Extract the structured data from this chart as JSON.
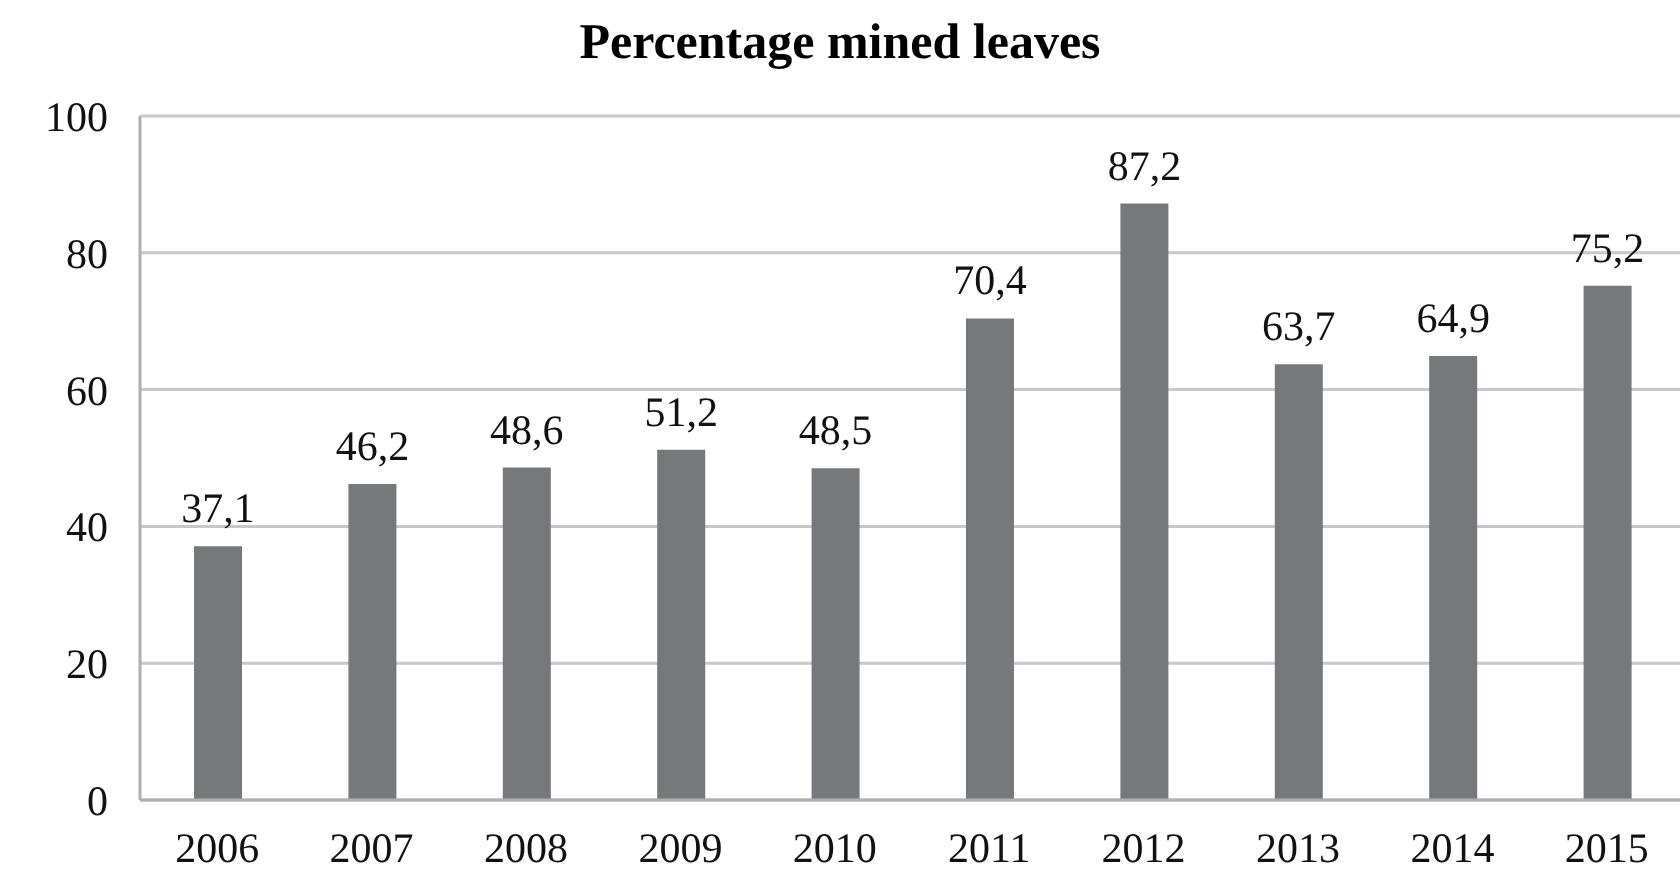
{
  "chart_data": {
    "type": "bar",
    "title": "Percentage mined leaves",
    "categories": [
      "2006",
      "2007",
      "2008",
      "2009",
      "2010",
      "2011",
      "2012",
      "2013",
      "2014",
      "2015"
    ],
    "values": [
      37.1,
      46.2,
      48.6,
      51.2,
      48.5,
      70.4,
      87.2,
      63.7,
      64.9,
      75.2
    ],
    "value_labels": [
      "37,1",
      "46,2",
      "48,6",
      "51,2",
      "48,5",
      "70,4",
      "87,2",
      "63,7",
      "64,9",
      "75,2"
    ],
    "color": "#77787b",
    "ylim": [
      0,
      100
    ],
    "yticks": [
      0,
      20,
      40,
      60,
      80,
      100
    ],
    "grid": "y"
  }
}
